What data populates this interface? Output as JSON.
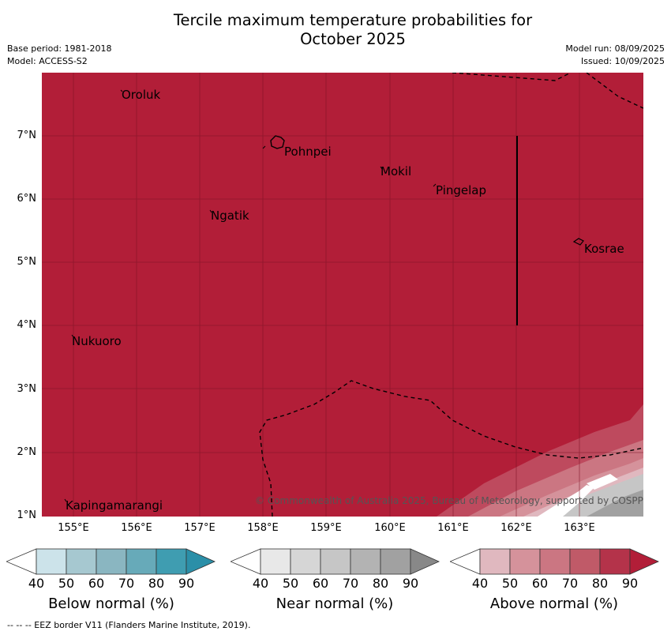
{
  "title": "Tercile maximum temperature probabilities for\nOctober 2025",
  "meta_left": {
    "base_period": "Base period: 1981-2018",
    "model": "Model: ACCESS-S2"
  },
  "meta_right": {
    "model_run": "Model run: 08/09/2025",
    "issued": "Issued: 10/09/2025"
  },
  "map": {
    "fill_color": "#b21e38",
    "y_ticks": [
      "7°N",
      "6°N",
      "5°N",
      "4°N",
      "3°N",
      "2°N",
      "1°N"
    ],
    "x_ticks": [
      "155°E",
      "156°E",
      "157°E",
      "158°E",
      "159°E",
      "160°E",
      "161°E",
      "162°E",
      "163°E"
    ],
    "places": [
      "Oroluk",
      "Pohnpei",
      "Mokil",
      "Pingelap",
      "Ngatik",
      "Kosrae",
      "Nukuoro",
      "Kapingamarangi"
    ],
    "copyright": "© Commonwealth of Australia 2025, Bureau of Meteorology, supported by COSPPac"
  },
  "legends": [
    {
      "title": "Below normal (%)",
      "ticks": [
        "40",
        "50",
        "60",
        "70",
        "80",
        "90"
      ],
      "colors": [
        "#ffffff",
        "#cce3ea",
        "#a6c8d0",
        "#8ab6c1",
        "#67aab9",
        "#3f9db1",
        "#2b8fa8"
      ]
    },
    {
      "title": "Near normal (%)",
      "ticks": [
        "40",
        "50",
        "60",
        "70",
        "80",
        "90"
      ],
      "colors": [
        "#ffffff",
        "#e8e8e8",
        "#d6d6d6",
        "#c6c6c6",
        "#b3b3b3",
        "#a1a1a1",
        "#888888"
      ]
    },
    {
      "title": "Above normal (%)",
      "ticks": [
        "40",
        "50",
        "60",
        "70",
        "80",
        "90"
      ],
      "colors": [
        "#ffffff",
        "#e0b8bf",
        "#d5929b",
        "#cb7682",
        "#c05a68",
        "#b4334a",
        "#b21e38"
      ]
    }
  ],
  "footnote": "--  --  -- EEZ border V11 (Flanders Marine Institute, 2019)."
}
